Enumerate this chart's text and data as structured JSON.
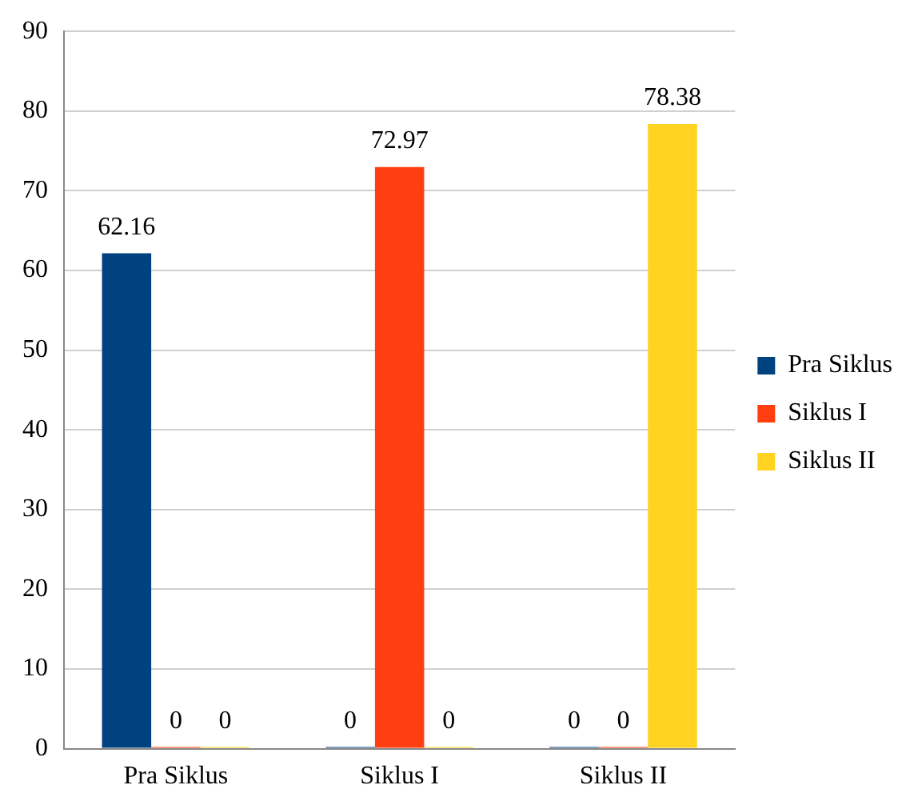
{
  "chart_data": {
    "type": "bar",
    "categories": [
      "Pra Siklus",
      "Siklus I",
      "Siklus II"
    ],
    "series": [
      {
        "name": "Pra Siklus",
        "color": "#00427f",
        "values": [
          62.16,
          0,
          0
        ]
      },
      {
        "name": "Siklus I",
        "color": "#ff3f0f",
        "values": [
          0,
          72.97,
          0
        ]
      },
      {
        "name": "Siklus II",
        "color": "#ffd320",
        "values": [
          0,
          0,
          78.38
        ]
      }
    ],
    "ylim": [
      0,
      90
    ],
    "yticks": [
      0,
      10,
      20,
      30,
      40,
      50,
      60,
      70,
      80,
      90
    ],
    "grid": "y",
    "legend": "right",
    "data_labels": true
  }
}
